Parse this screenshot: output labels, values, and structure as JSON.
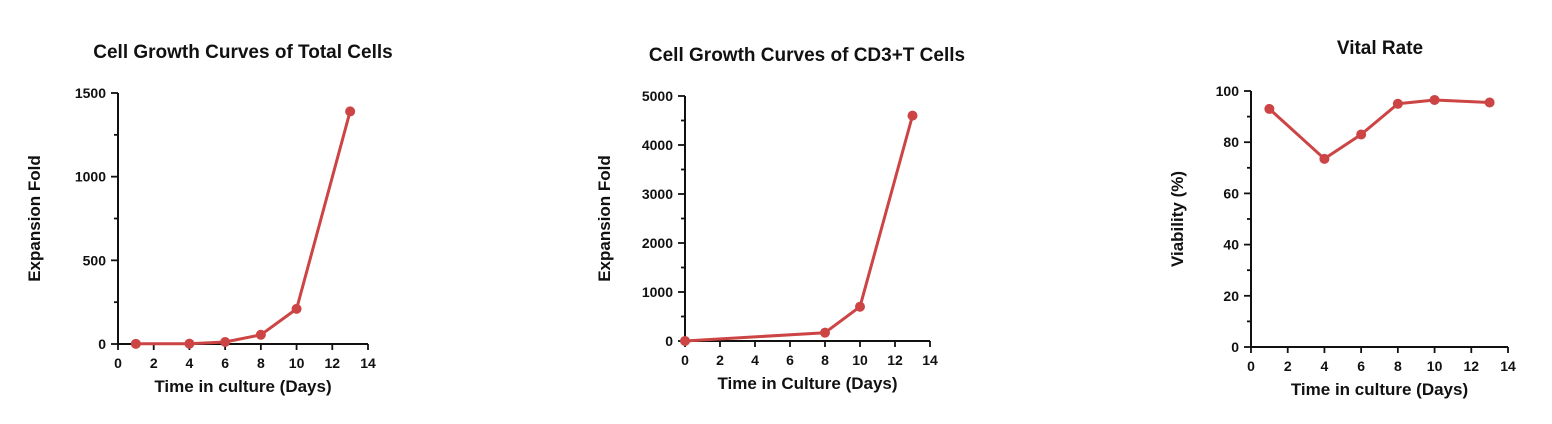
{
  "chart_data": [
    {
      "type": "line",
      "title": "Cell Growth Curves of Total Cells",
      "xlabel": "Time in culture (Days)",
      "ylabel": "Expansion Fold",
      "xlim": [
        0,
        14
      ],
      "ylim": [
        0,
        1500
      ],
      "xticks": [
        0,
        2,
        4,
        6,
        8,
        10,
        12,
        14
      ],
      "yticks": [
        0,
        500,
        1000,
        1500
      ],
      "yminor": 250,
      "grid": false,
      "color": "#cc4444",
      "series": [
        {
          "x": [
            1,
            4,
            6,
            8,
            10,
            13
          ],
          "values": [
            1,
            2,
            12,
            55,
            210,
            1390
          ]
        }
      ]
    },
    {
      "type": "line",
      "title": "Cell Growth Curves of CD3+T  Cells",
      "xlabel": "Time in Culture (Days)",
      "ylabel": "Expansion Fold",
      "xlim": [
        0,
        14
      ],
      "ylim": [
        0,
        5000
      ],
      "xticks": [
        0,
        2,
        4,
        6,
        8,
        10,
        12,
        14
      ],
      "yticks": [
        0,
        1000,
        2000,
        3000,
        4000,
        5000
      ],
      "yminor": 500,
      "grid": false,
      "color": "#cc4444",
      "series": [
        {
          "x": [
            0,
            8,
            10,
            13
          ],
          "values": [
            1,
            170,
            700,
            4600
          ]
        }
      ]
    },
    {
      "type": "line",
      "title": "Vital Rate",
      "xlabel": "Time in culture (Days)",
      "ylabel": "Viability (%)",
      "xlim": [
        0,
        14
      ],
      "ylim": [
        0,
        100
      ],
      "xticks": [
        0,
        2,
        4,
        6,
        8,
        10,
        12,
        14
      ],
      "yticks": [
        0,
        20,
        40,
        60,
        80,
        100
      ],
      "yminor": 10,
      "grid": false,
      "color": "#cc4444",
      "series": [
        {
          "x": [
            1,
            4,
            6,
            8,
            10,
            13
          ],
          "values": [
            93,
            73.5,
            83,
            95,
            96.5,
            95.5
          ]
        }
      ]
    }
  ]
}
